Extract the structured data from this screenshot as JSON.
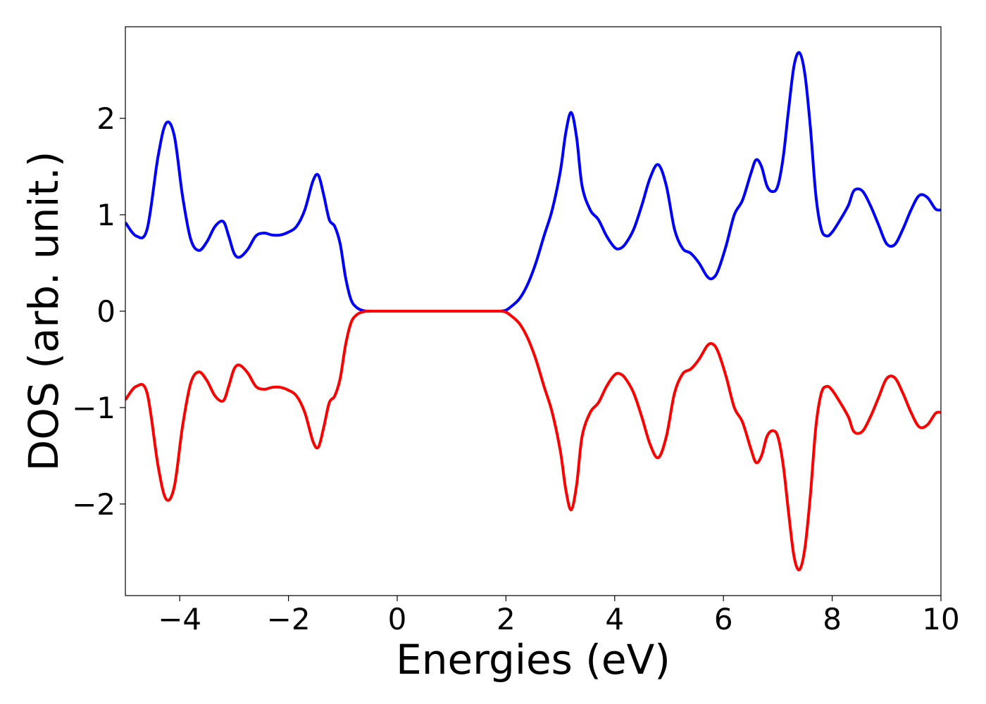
{
  "chart_data": {
    "type": "line",
    "title": "",
    "xlabel": "Energies (eV)",
    "ylabel": "DOS (arb. unit.)",
    "xlim": [
      -5,
      10
    ],
    "ylim": [
      -2.95,
      2.95
    ],
    "xticks": [
      -4,
      -2,
      0,
      2,
      4,
      6,
      8,
      10
    ],
    "xtick_labels": [
      "−4",
      "−2",
      "0",
      "2",
      "4",
      "6",
      "8",
      "10"
    ],
    "yticks": [
      -2,
      -1,
      0,
      1,
      2
    ],
    "ytick_labels": [
      "−2",
      "−1",
      "0",
      "1",
      "2"
    ],
    "grid": false,
    "legend": "none",
    "series": [
      {
        "color": "#0000ff",
        "x": [
          -5.0,
          -4.8,
          -4.6,
          -4.4,
          -4.25,
          -4.1,
          -3.95,
          -3.8,
          -3.65,
          -3.5,
          -3.35,
          -3.2,
          -3.1,
          -3.0,
          -2.9,
          -2.75,
          -2.6,
          -2.45,
          -2.3,
          -2.15,
          -2.0,
          -1.85,
          -1.7,
          -1.55,
          -1.45,
          -1.35,
          -1.25,
          -1.15,
          -1.05,
          -0.95,
          -0.85,
          -0.75,
          -0.65,
          -0.55,
          -0.45,
          0.0,
          1.0,
          1.8,
          1.9,
          2.0,
          2.1,
          2.25,
          2.4,
          2.55,
          2.7,
          2.85,
          3.0,
          3.1,
          3.2,
          3.3,
          3.4,
          3.55,
          3.7,
          3.85,
          4.0,
          4.1,
          4.2,
          4.35,
          4.5,
          4.65,
          4.8,
          4.95,
          5.1,
          5.25,
          5.4,
          5.55,
          5.7,
          5.8,
          5.9,
          6.05,
          6.2,
          6.35,
          6.5,
          6.6,
          6.7,
          6.8,
          6.9,
          7.0,
          7.1,
          7.2,
          7.3,
          7.4,
          7.5,
          7.6,
          7.7,
          7.8,
          7.9,
          8.0,
          8.15,
          8.3,
          8.4,
          8.55,
          8.7,
          8.85,
          9.0,
          9.15,
          9.3,
          9.45,
          9.6,
          9.75,
          9.9,
          10.0
        ],
        "y": [
          0.92,
          0.78,
          0.85,
          1.6,
          1.95,
          1.82,
          1.2,
          0.75,
          0.63,
          0.72,
          0.88,
          0.93,
          0.78,
          0.6,
          0.56,
          0.64,
          0.78,
          0.81,
          0.79,
          0.79,
          0.82,
          0.88,
          1.05,
          1.35,
          1.41,
          1.2,
          0.95,
          0.88,
          0.7,
          0.35,
          0.12,
          0.04,
          0.01,
          0.0,
          0.0,
          0.0,
          0.0,
          0.0,
          0.0,
          0.01,
          0.05,
          0.13,
          0.28,
          0.5,
          0.78,
          1.05,
          1.45,
          1.85,
          2.06,
          1.8,
          1.3,
          1.05,
          0.95,
          0.78,
          0.66,
          0.65,
          0.7,
          0.85,
          1.1,
          1.38,
          1.52,
          1.3,
          0.85,
          0.65,
          0.6,
          0.5,
          0.36,
          0.34,
          0.42,
          0.68,
          1.0,
          1.15,
          1.42,
          1.57,
          1.5,
          1.3,
          1.24,
          1.3,
          1.6,
          2.1,
          2.55,
          2.68,
          2.45,
          1.9,
          1.2,
          0.85,
          0.78,
          0.82,
          0.95,
          1.1,
          1.25,
          1.25,
          1.1,
          0.9,
          0.7,
          0.69,
          0.85,
          1.05,
          1.2,
          1.18,
          1.06,
          1.05
        ]
      },
      {
        "color": "#ff0000",
        "x": [
          -5.0,
          -4.8,
          -4.6,
          -4.4,
          -4.25,
          -4.1,
          -3.95,
          -3.8,
          -3.65,
          -3.5,
          -3.35,
          -3.2,
          -3.1,
          -3.0,
          -2.9,
          -2.75,
          -2.6,
          -2.45,
          -2.3,
          -2.15,
          -2.0,
          -1.85,
          -1.7,
          -1.55,
          -1.45,
          -1.35,
          -1.25,
          -1.15,
          -1.05,
          -0.95,
          -0.85,
          -0.75,
          -0.65,
          -0.55,
          -0.45,
          0.0,
          1.0,
          1.8,
          1.9,
          2.0,
          2.1,
          2.25,
          2.4,
          2.55,
          2.7,
          2.85,
          3.0,
          3.1,
          3.2,
          3.3,
          3.4,
          3.55,
          3.7,
          3.85,
          4.0,
          4.1,
          4.2,
          4.35,
          4.5,
          4.65,
          4.8,
          4.95,
          5.1,
          5.25,
          5.4,
          5.55,
          5.7,
          5.8,
          5.9,
          6.05,
          6.2,
          6.35,
          6.5,
          6.6,
          6.7,
          6.8,
          6.9,
          7.0,
          7.1,
          7.2,
          7.3,
          7.4,
          7.5,
          7.6,
          7.7,
          7.8,
          7.9,
          8.0,
          8.15,
          8.3,
          8.4,
          8.55,
          8.7,
          8.85,
          9.0,
          9.15,
          9.3,
          9.45,
          9.6,
          9.75,
          9.9,
          10.0
        ],
        "y": [
          -0.92,
          -0.78,
          -0.85,
          -1.6,
          -1.95,
          -1.82,
          -1.2,
          -0.75,
          -0.63,
          -0.72,
          -0.88,
          -0.93,
          -0.78,
          -0.6,
          -0.56,
          -0.64,
          -0.78,
          -0.81,
          -0.79,
          -0.79,
          -0.82,
          -0.88,
          -1.05,
          -1.35,
          -1.41,
          -1.2,
          -0.95,
          -0.88,
          -0.7,
          -0.35,
          -0.12,
          -0.04,
          -0.01,
          0.0,
          0.0,
          0.0,
          0.0,
          0.0,
          0.0,
          -0.01,
          -0.05,
          -0.13,
          -0.28,
          -0.5,
          -0.78,
          -1.05,
          -1.45,
          -1.85,
          -2.06,
          -1.8,
          -1.3,
          -1.05,
          -0.95,
          -0.78,
          -0.66,
          -0.65,
          -0.7,
          -0.85,
          -1.1,
          -1.38,
          -1.52,
          -1.3,
          -0.85,
          -0.65,
          -0.6,
          -0.5,
          -0.36,
          -0.34,
          -0.42,
          -0.68,
          -1.0,
          -1.15,
          -1.42,
          -1.57,
          -1.5,
          -1.3,
          -1.24,
          -1.3,
          -1.6,
          -2.1,
          -2.55,
          -2.68,
          -2.45,
          -1.9,
          -1.2,
          -0.85,
          -0.78,
          -0.82,
          -0.95,
          -1.1,
          -1.25,
          -1.25,
          -1.1,
          -0.9,
          -0.7,
          -0.69,
          -0.85,
          -1.05,
          -1.2,
          -1.18,
          -1.06,
          -1.05
        ]
      }
    ]
  }
}
